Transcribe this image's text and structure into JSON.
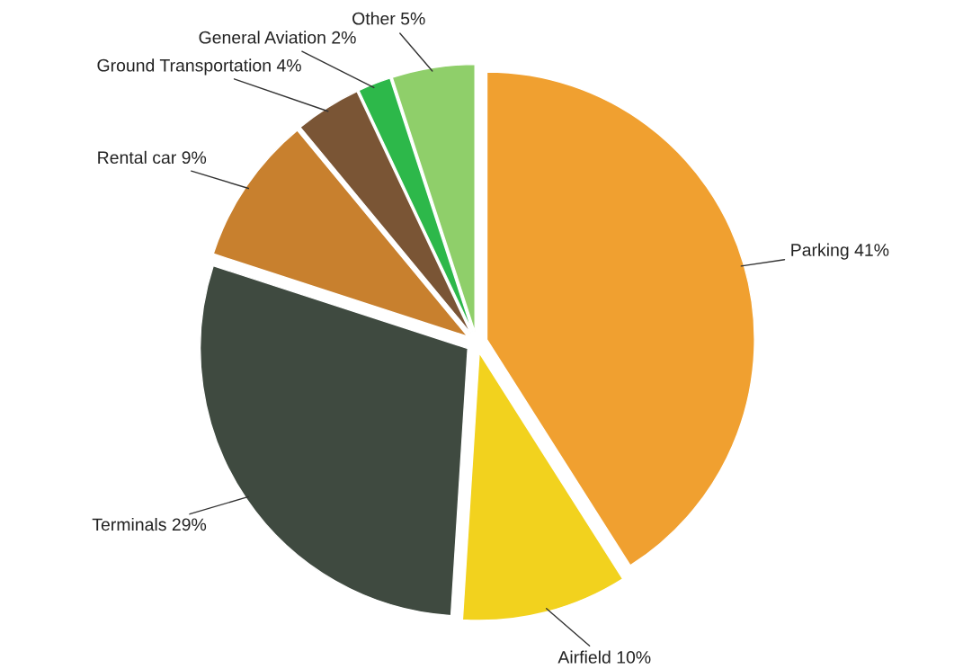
{
  "chart_data": {
    "type": "pie",
    "categories": [
      "Parking",
      "Airfield",
      "Terminals",
      "Rental car",
      "Ground Transportation",
      "General Aviation",
      "Other"
    ],
    "values": [
      41,
      10,
      29,
      9,
      4,
      2,
      5
    ],
    "value_labels": [
      "41%",
      "10%",
      "29%",
      "9%",
      "4%",
      "2%",
      "5%"
    ],
    "colors": [
      "#f0a030",
      "#f2d21e",
      "#3f4a40",
      "#c8802e",
      "#7a5535",
      "#2db84a",
      "#8fcf6a"
    ],
    "legend": false
  }
}
